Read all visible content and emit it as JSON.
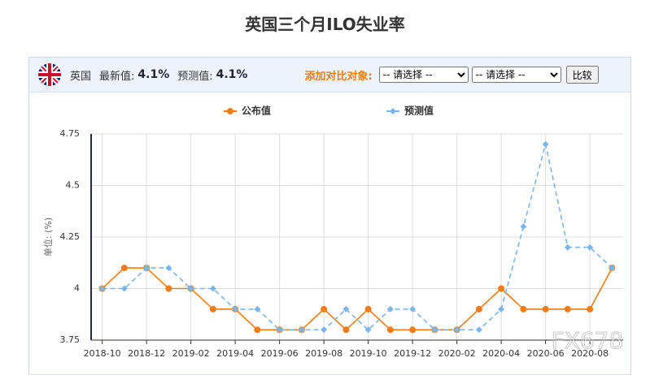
{
  "header": {
    "country": "英国",
    "latest_label": "最新值:",
    "latest_value": "4.1%",
    "forecast_label": "预测值:",
    "forecast_value": "4.1%",
    "compare_label": "添加对比对象:",
    "select_placeholder": "-- 请选择 --",
    "compare_button": "比较"
  },
  "watermark": "FX678",
  "chart_data": {
    "type": "line",
    "title": "英国三个月ILO失业率",
    "y_label": "单位: (%)",
    "categories": [
      "2018-10",
      null,
      "2018-12",
      null,
      "2019-02",
      null,
      "2019-04",
      null,
      "2019-06",
      null,
      "2019-08",
      null,
      "2019-10",
      null,
      "2019-12",
      null,
      "2020-02",
      null,
      "2020-04",
      null,
      "2020-06",
      null,
      "2020-08",
      null
    ],
    "series": [
      {
        "name": "公布值",
        "color": "#f47c14",
        "values": [
          4.0,
          4.1,
          4.1,
          4.0,
          4.0,
          3.9,
          3.9,
          3.8,
          3.8,
          3.8,
          3.9,
          3.8,
          3.9,
          3.8,
          3.8,
          3.8,
          3.8,
          3.9,
          4.0,
          3.9,
          3.9,
          3.9,
          3.9,
          4.1
        ]
      },
      {
        "name": "预测值",
        "color": "#7cb5ec",
        "values": [
          4.0,
          4.0,
          4.1,
          4.1,
          4.0,
          4.0,
          3.9,
          3.9,
          3.8,
          3.8,
          3.8,
          3.9,
          3.8,
          3.9,
          3.9,
          3.8,
          3.8,
          3.8,
          3.9,
          4.3,
          4.7,
          4.2,
          4.2,
          4.1
        ]
      }
    ],
    "ylim": [
      3.75,
      4.75
    ],
    "yticks": [
      3.75,
      4,
      4.25,
      4.5,
      4.75
    ],
    "grid": true
  }
}
